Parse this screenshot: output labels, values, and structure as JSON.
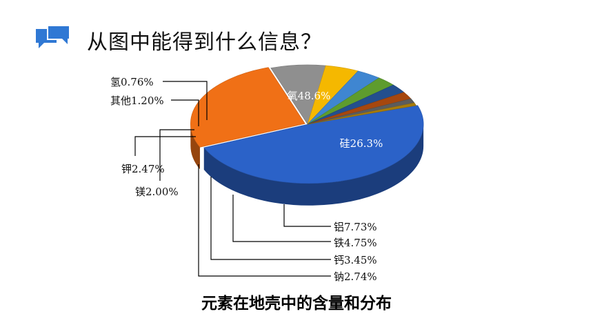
{
  "header": {
    "icon": "chat-bubble-icon",
    "title": "从图中能得到什么信息？",
    "accent_color": "#2f78d4"
  },
  "chart_data": {
    "type": "pie",
    "style": "3d-exploded",
    "title": "元素在地壳中的含量和分布",
    "slices": [
      {
        "name": "氧",
        "label": "氧48.6%",
        "value": 48.6,
        "color": "#2b62c8"
      },
      {
        "name": "硅",
        "label": "硅26.3%",
        "value": 26.3,
        "color": "#f07016"
      },
      {
        "name": "铝",
        "label": "铝7.73%",
        "value": 7.73,
        "color": "#8f8f8f"
      },
      {
        "name": "铁",
        "label": "铁4.75%",
        "value": 4.75,
        "color": "#f5b800"
      },
      {
        "name": "钙",
        "label": "钙3.45%",
        "value": 3.45,
        "color": "#3f86d1"
      },
      {
        "name": "钠",
        "label": "钠2.74%",
        "value": 2.74,
        "color": "#5e9c2e"
      },
      {
        "name": "钾",
        "label": "钾2.47%",
        "value": 2.47,
        "color": "#234f8e"
      },
      {
        "name": "镁",
        "label": "镁2.00%",
        "value": 2.0,
        "color": "#a6470e"
      },
      {
        "name": "其他",
        "label": "其他1.20%",
        "value": 1.2,
        "color": "#5c5c5c"
      },
      {
        "name": "氢",
        "label": "氢0.76%",
        "value": 0.76,
        "color": "#a87c0a"
      }
    ]
  }
}
